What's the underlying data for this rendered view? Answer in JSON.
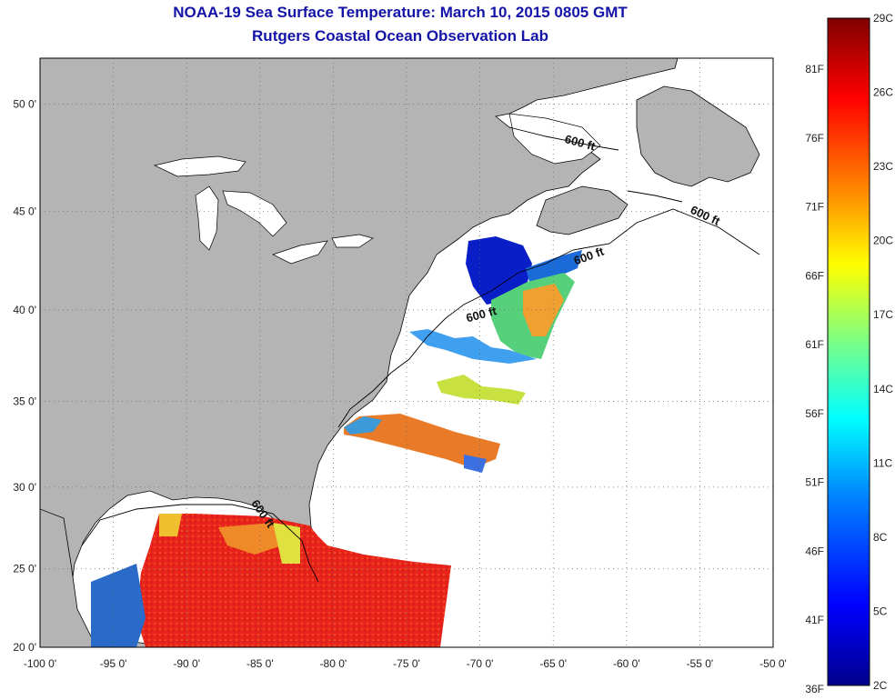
{
  "title": "NOAA-19 Sea Surface Temperature:  March 10, 2015 0805 GMT",
  "subtitle": "Rutgers Coastal Ocean Observation Lab",
  "map": {
    "lon_range": [
      -100,
      -50
    ],
    "lat_range": [
      20,
      52
    ],
    "lon_ticks": [
      "-100 0'",
      "-95 0'",
      "-90 0'",
      "-85 0'",
      "-80 0'",
      "-75 0'",
      "-70 0'",
      "-65 0'",
      "-60 0'",
      "-55 0'",
      "-50 0'"
    ],
    "lat_ticks": [
      "20 0'",
      "25 0'",
      "30 0'",
      "35 0'",
      "40 0'",
      "45 0'",
      "50 0'"
    ],
    "contour_label": "600 ft",
    "colors": {
      "land": "#b4b4b4",
      "ocean": "#ffffff",
      "grid": "#555555",
      "coast": "#000000"
    }
  },
  "colorbar": {
    "celsius_labels": [
      "29C",
      "26C",
      "23C",
      "20C",
      "17C",
      "14C",
      "11C",
      "8C",
      "5C",
      "2C"
    ],
    "fahrenheit_labels": [
      "81F",
      "76F",
      "71F",
      "66F",
      "61F",
      "56F",
      "51F",
      "46F",
      "41F",
      "36F"
    ],
    "colors": [
      "#00008c",
      "#0000ff",
      "#0080ff",
      "#00ffff",
      "#80ff80",
      "#ffff00",
      "#ff8000",
      "#ff0000",
      "#800000"
    ]
  }
}
